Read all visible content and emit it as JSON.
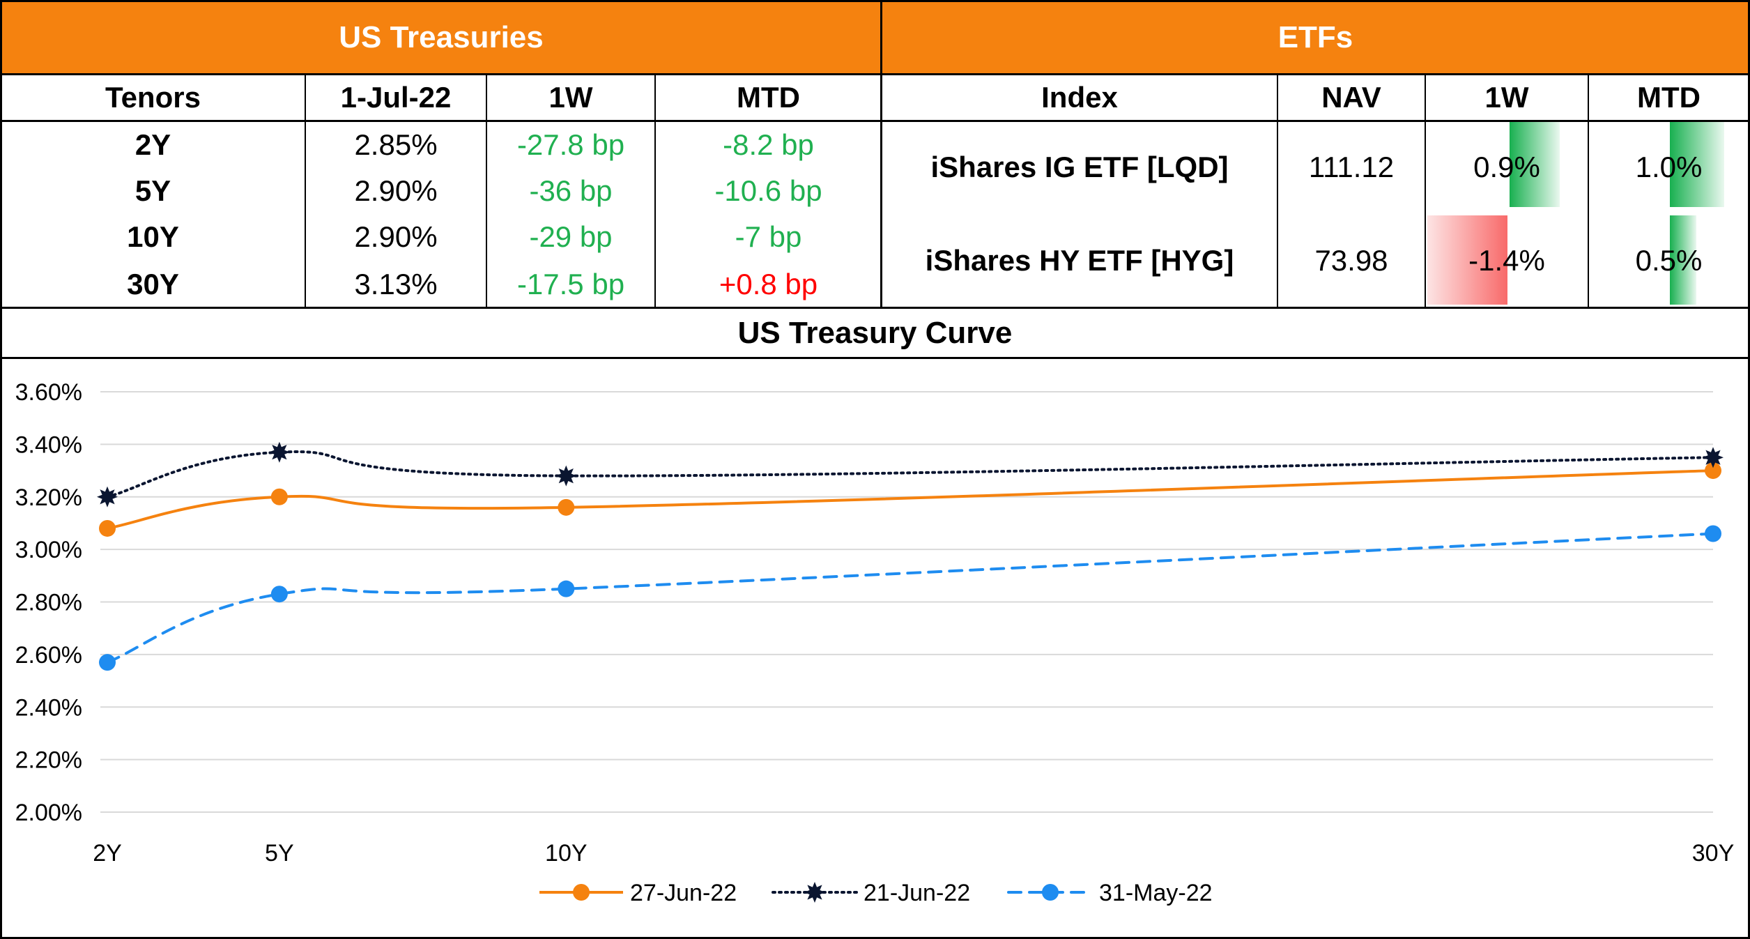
{
  "treasuries": {
    "title": "US Treasuries",
    "headers": [
      "Tenors",
      "1-Jul-22",
      "1W",
      "MTD"
    ],
    "rows": [
      {
        "tenor": "2Y",
        "yield": "2.85%",
        "w1": "-27.8 bp",
        "mtd": "-8.2 bp",
        "w1_sign": "neg",
        "mtd_sign": "neg"
      },
      {
        "tenor": "5Y",
        "yield": "2.90%",
        "w1": "-36 bp",
        "mtd": "-10.6 bp",
        "w1_sign": "neg",
        "mtd_sign": "neg"
      },
      {
        "tenor": "10Y",
        "yield": "2.90%",
        "w1": "-29 bp",
        "mtd": "-7 bp",
        "w1_sign": "neg",
        "mtd_sign": "neg"
      },
      {
        "tenor": "30Y",
        "yield": "3.13%",
        "w1": "-17.5 bp",
        "mtd": "+0.8 bp",
        "w1_sign": "neg",
        "mtd_sign": "pos"
      }
    ]
  },
  "etfs": {
    "title": "ETFs",
    "headers": [
      "Index",
      "NAV",
      "1W",
      "MTD"
    ],
    "rows": [
      {
        "index": "iShares IG ETF [LQD]",
        "nav": "111.12",
        "w1": "0.9%",
        "mtd": "1.0%",
        "w1_value": 0.9,
        "mtd_value": 1.0
      },
      {
        "index": "iShares HY ETF [HYG]",
        "nav": "73.98",
        "w1": "-1.4%",
        "mtd": "0.5%",
        "w1_value": -1.4,
        "mtd_value": 0.5
      }
    ]
  },
  "colors": {
    "header_bg": "#f5820f",
    "positive_text": "#20b050",
    "negative_text": "#ff0000",
    "positive_bar": "#18b050",
    "negative_bar": "#f86a6a"
  },
  "chart_data": {
    "type": "line",
    "title": "US Treasury Curve",
    "x_labels": [
      "2Y",
      "5Y",
      "10Y",
      "30Y"
    ],
    "x": [
      2,
      5,
      10,
      30
    ],
    "ylim": [
      2.0,
      3.6
    ],
    "y_ticks": [
      "3.60%",
      "3.40%",
      "3.20%",
      "3.00%",
      "2.80%",
      "2.60%",
      "2.40%",
      "2.20%",
      "2.00%"
    ],
    "grid": true,
    "legend_position": "bottom",
    "series": [
      {
        "name": "27-Jun-22",
        "values": [
          3.08,
          3.2,
          3.16,
          3.3
        ],
        "color": "#f5820f",
        "style": "solid"
      },
      {
        "name": "21-Jun-22",
        "values": [
          3.2,
          3.37,
          3.28,
          3.35
        ],
        "color": "#0a1530",
        "style": "dotted"
      },
      {
        "name": "31-May-22",
        "values": [
          2.57,
          2.83,
          2.85,
          3.06
        ],
        "color": "#1e8cf0",
        "style": "dashed"
      }
    ]
  }
}
